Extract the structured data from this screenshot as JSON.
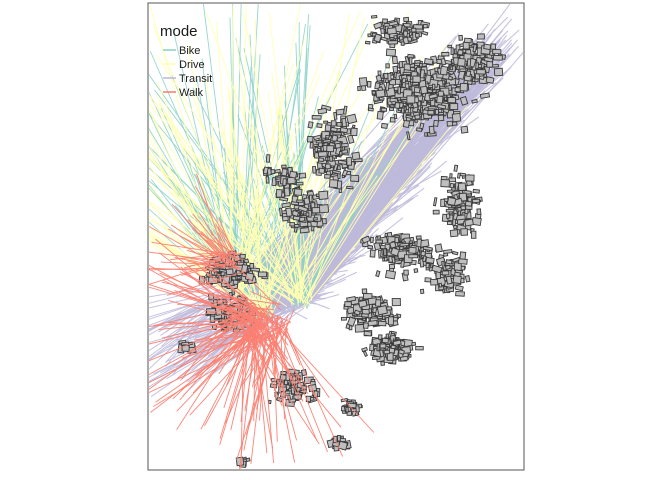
{
  "legend": {
    "title": "mode",
    "items": [
      {
        "label": "Bike",
        "color": "#8dd3c7"
      },
      {
        "label": "Drive",
        "color": "#ffffb3"
      },
      {
        "label": "Transit",
        "color": "#bebada"
      },
      {
        "label": "Walk",
        "color": "#fb8072"
      }
    ]
  },
  "colors": {
    "building_fill": "#bfbfbf",
    "building_stroke": "#3a3a3a",
    "frame": "#555555",
    "background": "#ffffff"
  }
}
